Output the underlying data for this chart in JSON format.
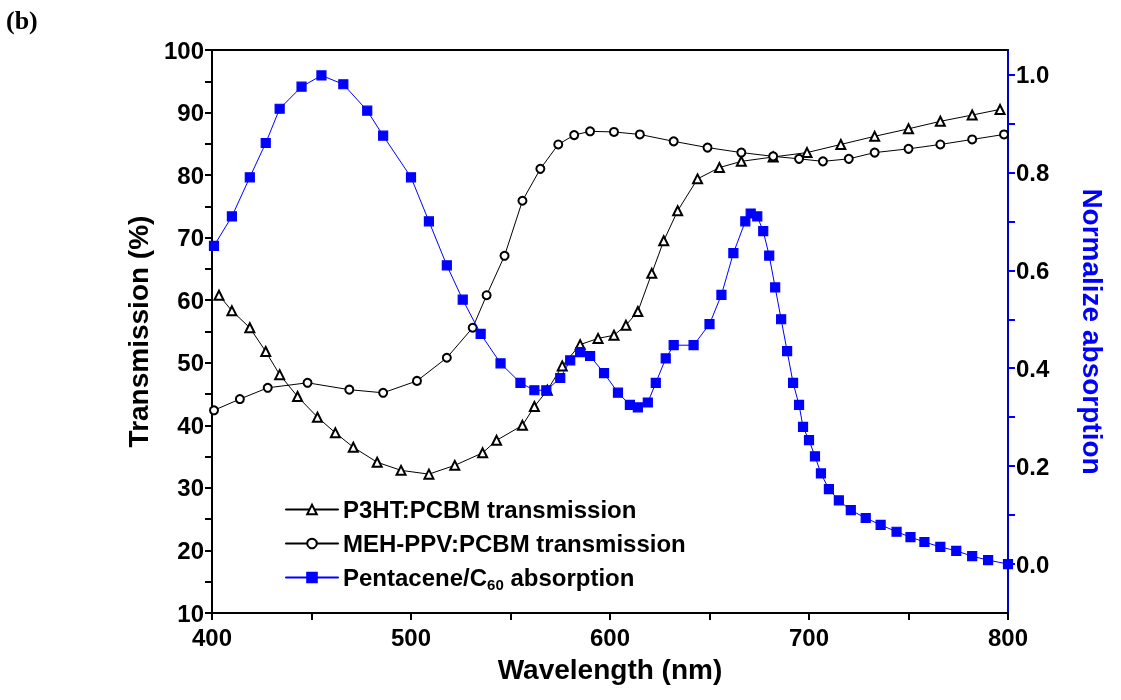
{
  "chart_data": {
    "type": "line",
    "xlabel": "Wavelength (nm)",
    "ylabel": "Transmission (%)",
    "y2label": "Normalize absorption",
    "annotations": [
      "(b)"
    ],
    "xlim": [
      400,
      800
    ],
    "xticks": [
      400,
      {
        "value": 450,
        "label": null
      },
      500,
      {
        "value": 550,
        "label": null
      },
      600,
      {
        "value": 650,
        "label": null
      },
      700,
      {
        "value": 750,
        "label": null
      },
      800
    ],
    "ylim": [
      10,
      100
    ],
    "yticks": [
      10,
      {
        "value": 15,
        "label": null
      },
      20,
      {
        "value": 25,
        "label": null
      },
      30,
      {
        "value": 35,
        "label": null
      },
      40,
      {
        "value": 45,
        "label": null
      },
      50,
      {
        "value": 55,
        "label": null
      },
      60,
      {
        "value": 65,
        "label": null
      },
      70,
      {
        "value": 75,
        "label": null
      },
      80,
      {
        "value": 85,
        "label": null
      },
      90,
      {
        "value": 95,
        "label": null
      },
      100
    ],
    "y2lim": [
      -0.1,
      1.05
    ],
    "y2ticks": [
      {
        "value": 0,
        "label": "0.0"
      },
      {
        "value": 0.1,
        "label": null
      },
      0.2,
      {
        "value": 0.3,
        "label": null
      },
      0.4,
      {
        "value": 0.5,
        "label": null
      },
      0.6,
      {
        "value": 0.7,
        "label": null
      },
      0.8,
      {
        "value": 0.9,
        "label": null
      },
      {
        "value": 1,
        "label": "1.0"
      }
    ],
    "grid": false,
    "legend": "bottom left",
    "line_style": "solid",
    "series": [
      {
        "name": "P3HT:PCBM transmission",
        "color": "#000000",
        "marker": "triangle",
        "x": [
          403.5,
          410,
          419,
          427,
          434,
          443,
          453,
          462,
          471,
          483,
          495,
          509,
          522,
          536,
          543,
          556,
          562,
          568.5,
          576,
          585,
          594,
          602,
          608,
          614,
          621,
          627,
          634,
          644,
          655,
          666,
          682,
          699,
          716,
          733,
          750,
          766,
          782,
          796
        ],
        "values": [
          60.8,
          58.3,
          55.6,
          51.8,
          48.1,
          44.6,
          41.3,
          38.8,
          36.5,
          34.1,
          32.8,
          32.2,
          33.6,
          35.6,
          37.6,
          40,
          43,
          45.6,
          49.5,
          52.9,
          53.9,
          54.4,
          56,
          58.2,
          64.3,
          69.5,
          74.3,
          79.4,
          81.2,
          82.2,
          82.9,
          83.6,
          84.9,
          86.2,
          87.4,
          88.6,
          89.6,
          90.5
        ]
      },
      {
        "name": "MEH-PPV:PCBM transmission",
        "color": "#000000",
        "marker": "circle",
        "x": [
          401,
          414,
          428,
          448,
          469,
          486,
          503,
          518,
          531,
          538,
          547,
          556,
          565,
          574,
          582,
          590,
          602,
          615,
          632,
          649,
          666,
          682,
          695,
          707,
          720,
          733,
          750,
          766,
          782,
          798
        ],
        "values": [
          42.4,
          44.2,
          46,
          46.8,
          45.7,
          45.2,
          47.1,
          50.8,
          55.6,
          60.8,
          67.1,
          75.9,
          81,
          84.9,
          86.4,
          87,
          86.9,
          86.5,
          85.4,
          84.4,
          83.6,
          83,
          82.6,
          82.2,
          82.6,
          83.6,
          84.2,
          84.9,
          85.7,
          86.5
        ]
      },
      {
        "name": "Pentacene/C$_{60}$ absorption",
        "color": "#0000ff",
        "marker": "square",
        "axis": "y2",
        "x": [
          401,
          410,
          419,
          427,
          434,
          445,
          455,
          466,
          478,
          486,
          500,
          509,
          518,
          526,
          535,
          545,
          555,
          562,
          568,
          575,
          580,
          585,
          590,
          597,
          604,
          610,
          614,
          619,
          623,
          628,
          632,
          642,
          650,
          656,
          662,
          668,
          670.7,
          674,
          677,
          680,
          683,
          686,
          689,
          692,
          695,
          697,
          700,
          703,
          706,
          710,
          715,
          721,
          728.5,
          736,
          744,
          751,
          758,
          766,
          774,
          782,
          790,
          800
        ],
        "values": [
          0.65,
          0.71,
          0.79,
          0.86,
          0.93,
          0.975,
          0.998,
          0.98,
          0.926,
          0.875,
          0.79,
          0.7,
          0.61,
          0.54,
          0.47,
          0.41,
          0.37,
          0.355,
          0.355,
          0.38,
          0.416,
          0.433,
          0.425,
          0.39,
          0.35,
          0.325,
          0.32,
          0.33,
          0.37,
          0.42,
          0.447,
          0.447,
          0.49,
          0.55,
          0.635,
          0.7,
          0.716,
          0.71,
          0.68,
          0.63,
          0.565,
          0.5,
          0.435,
          0.37,
          0.325,
          0.28,
          0.253,
          0.22,
          0.185,
          0.153,
          0.13,
          0.11,
          0.094,
          0.08,
          0.066,
          0.055,
          0.045,
          0.035,
          0.027,
          0.016,
          0.008,
          0.0
        ]
      }
    ]
  }
}
